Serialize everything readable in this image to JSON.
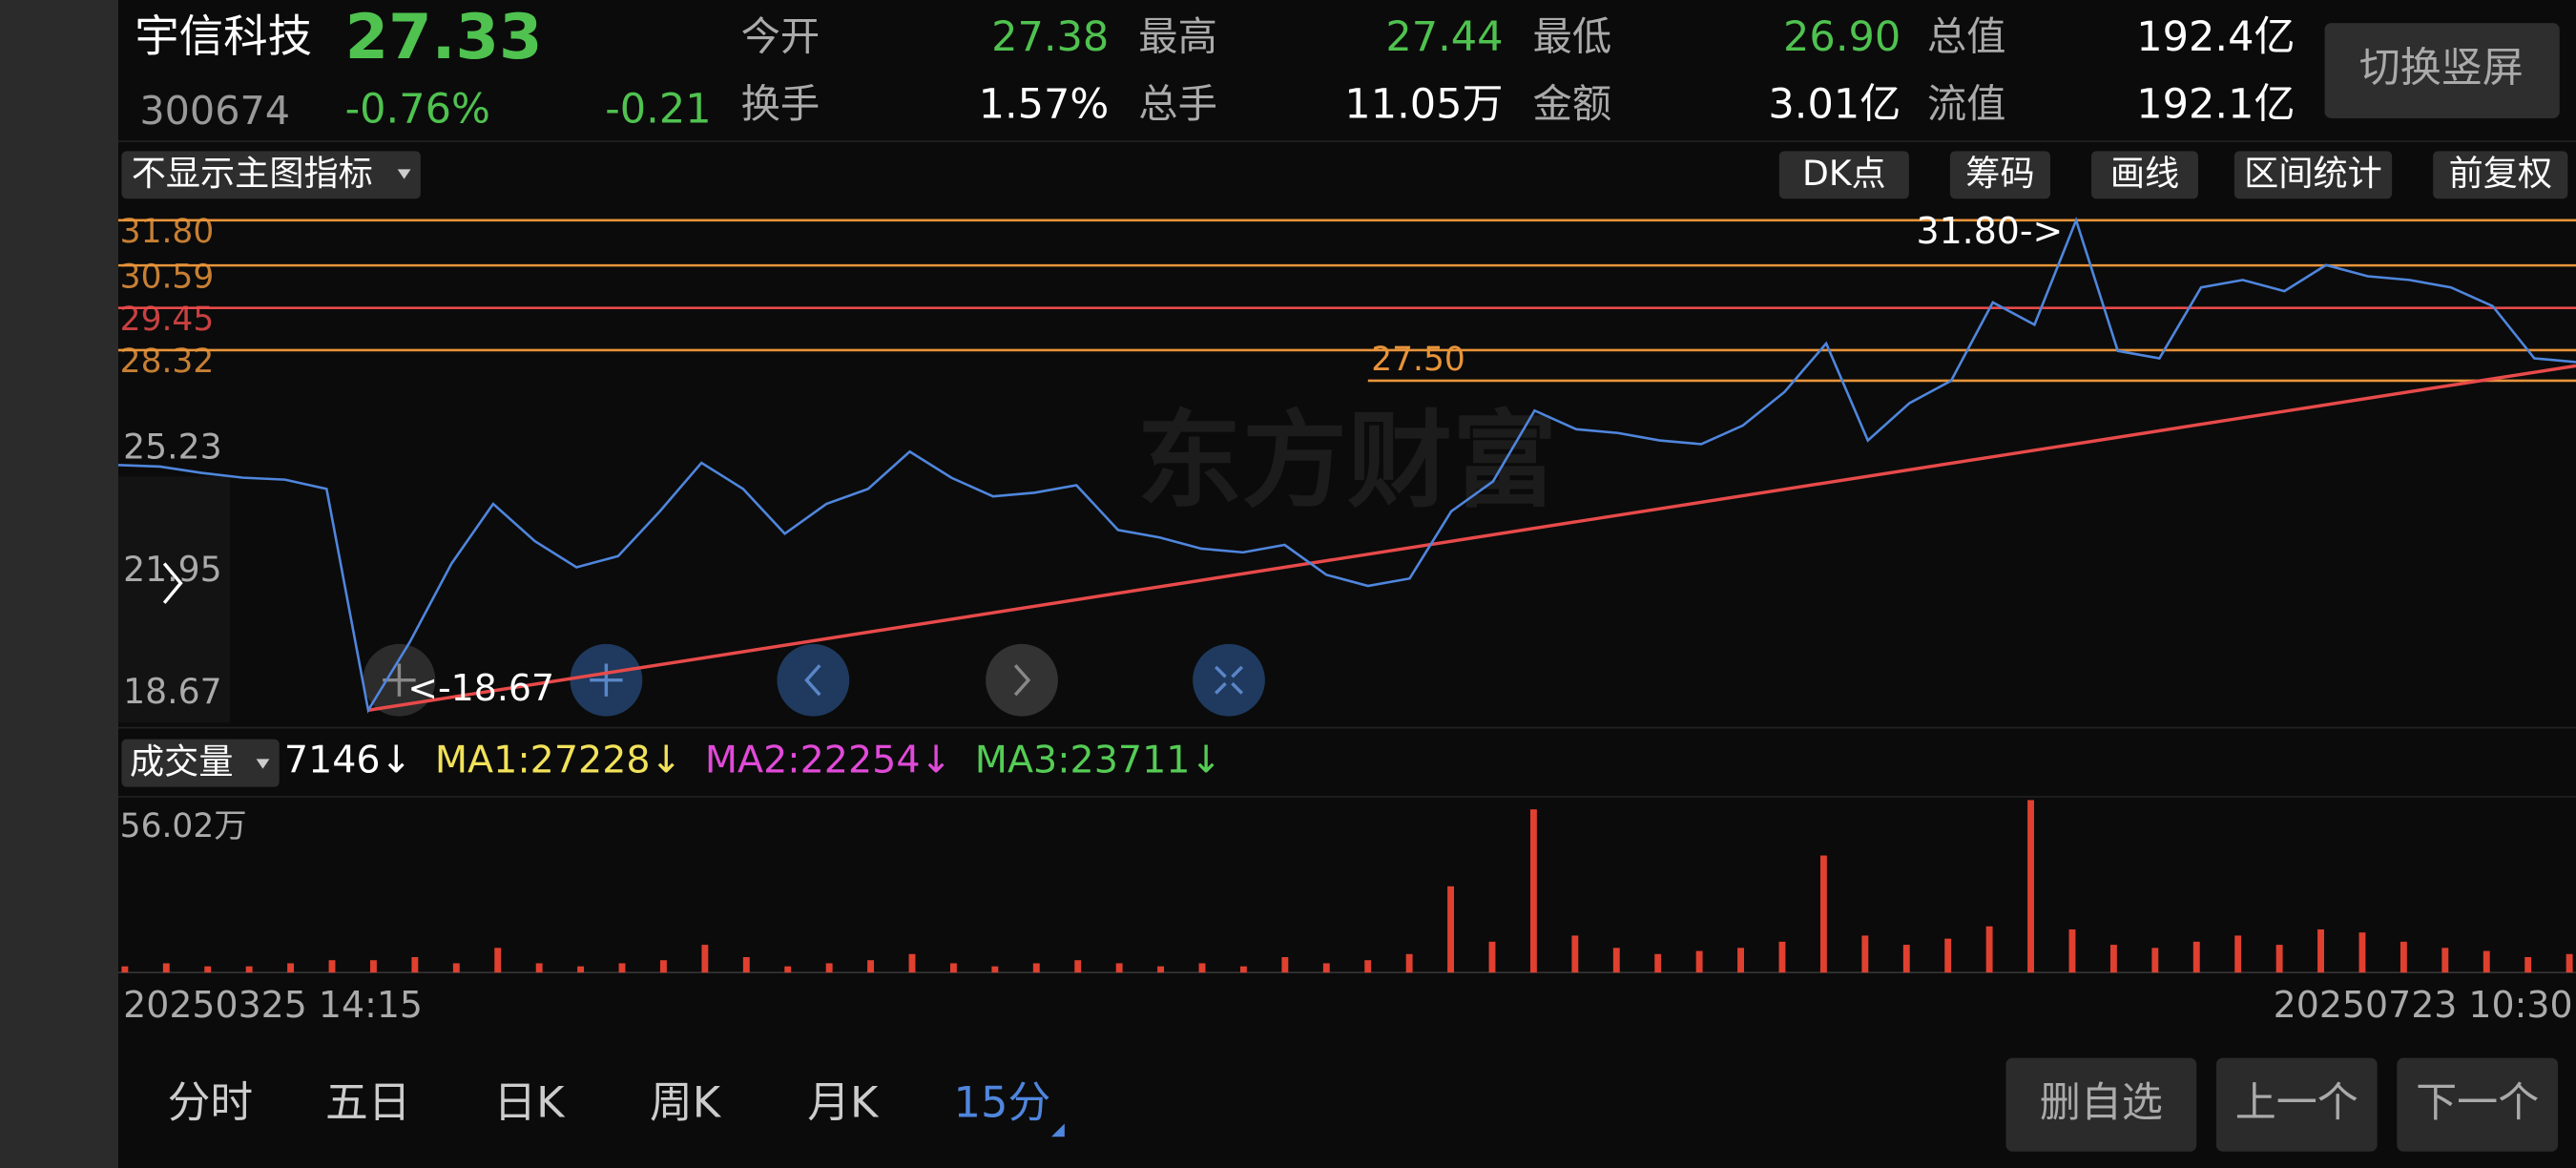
{
  "header": {
    "name": "宇信科技",
    "price": "27.33",
    "code": "300674",
    "change_pct": "-0.76%",
    "change": "-0.21",
    "stats": [
      {
        "label": "今开",
        "value": "27.38"
      },
      {
        "label": "最高",
        "value": "27.44"
      },
      {
        "label": "最低",
        "value": "26.90"
      },
      {
        "label": "总值",
        "value": "192.4亿"
      },
      {
        "label": "换手",
        "value": "1.57%"
      },
      {
        "label": "总手",
        "value": "11.05万"
      },
      {
        "label": "金额",
        "value": "3.01亿"
      },
      {
        "label": "流值",
        "value": "192.1亿"
      }
    ],
    "rotate_button": "切换竖屏"
  },
  "toolbar": {
    "indicator": "不显示主图指标",
    "buttons": [
      "DK点",
      "筹码",
      "画线",
      "区间统计",
      "前复权"
    ]
  },
  "watermark": "东方财富",
  "chart_data": [
    {
      "type": "line",
      "color": "#4f86dd",
      "values": [
        25.24,
        25.2,
        25.03,
        24.9,
        24.85,
        24.6,
        18.67,
        20.5,
        22.6,
        24.2,
        23.2,
        22.5,
        22.8,
        24.0,
        25.3,
        24.6,
        23.4,
        24.2,
        24.6,
        25.6,
        24.9,
        24.4,
        24.5,
        24.7,
        23.5,
        23.3,
        23.0,
        22.9,
        23.1,
        22.3,
        22.0,
        22.2,
        24.0,
        24.8,
        26.7,
        26.2,
        26.1,
        25.9,
        25.8,
        26.3,
        27.2,
        28.5,
        25.9,
        26.9,
        27.5,
        29.6,
        29.0,
        31.8,
        28.3,
        28.1,
        30.0,
        30.2,
        29.9,
        30.6,
        30.3,
        30.2,
        30.0,
        29.5,
        28.1,
        28.0
      ],
      "ylim": [
        18.2,
        32.2
      ],
      "yticks": [
        18.67,
        21.95,
        25.23
      ],
      "x_labels": [
        "20250325 14:15",
        "20250723 10:30"
      ],
      "levels": [
        {
          "value": 31.8,
          "label": "31.80",
          "color": "#e8943a"
        },
        {
          "value": 30.59,
          "label": "30.59",
          "color": "#e8943a"
        },
        {
          "value": 29.45,
          "label": "29.45",
          "color": "#e84a4a"
        },
        {
          "value": 28.32,
          "label": "28.32",
          "color": "#e8943a"
        }
      ],
      "level_mark": {
        "value": 27.5,
        "label": "27.50",
        "color": "#e8943a"
      },
      "annotations": {
        "max": {
          "value": 31.8,
          "label": "31.80->"
        },
        "min": {
          "value": 18.67,
          "label": "<-18.67"
        }
      },
      "trendline": {
        "start": 18.67,
        "end": 27.9,
        "color": "#e84a4a"
      }
    },
    {
      "type": "bar",
      "title": "成交量",
      "color": "#e0402f",
      "values": [
        2,
        3,
        2,
        2,
        3,
        4,
        4,
        5,
        3,
        8,
        3,
        2,
        3,
        4,
        9,
        5,
        2,
        3,
        4,
        6,
        3,
        2,
        3,
        4,
        3,
        2,
        3,
        2,
        5,
        3,
        4,
        6,
        28,
        10,
        53,
        12,
        8,
        6,
        7,
        8,
        10,
        38,
        12,
        9,
        11,
        15,
        56,
        14,
        9,
        8,
        10,
        12,
        9,
        14,
        13,
        10,
        8,
        7,
        5,
        6
      ],
      "ylim": [
        0,
        56.02
      ],
      "yticks": [
        {
          "value": 56.02,
          "label": "56.02万"
        }
      ],
      "indicators": [
        {
          "label": "7146↓",
          "color": "#ffffff"
        },
        {
          "label": "MA1:27228↓",
          "color": "#f2e25a"
        },
        {
          "label": "MA2:22254↓",
          "color": "#e04ad8"
        },
        {
          "label": "MA3:23711↓",
          "color": "#55cc55"
        }
      ]
    }
  ],
  "tabs": [
    "分时",
    "五日",
    "日K",
    "周K",
    "月K",
    "15分"
  ],
  "active_tab_index": 5,
  "actions": [
    "删自选",
    "上一个",
    "下一个"
  ]
}
